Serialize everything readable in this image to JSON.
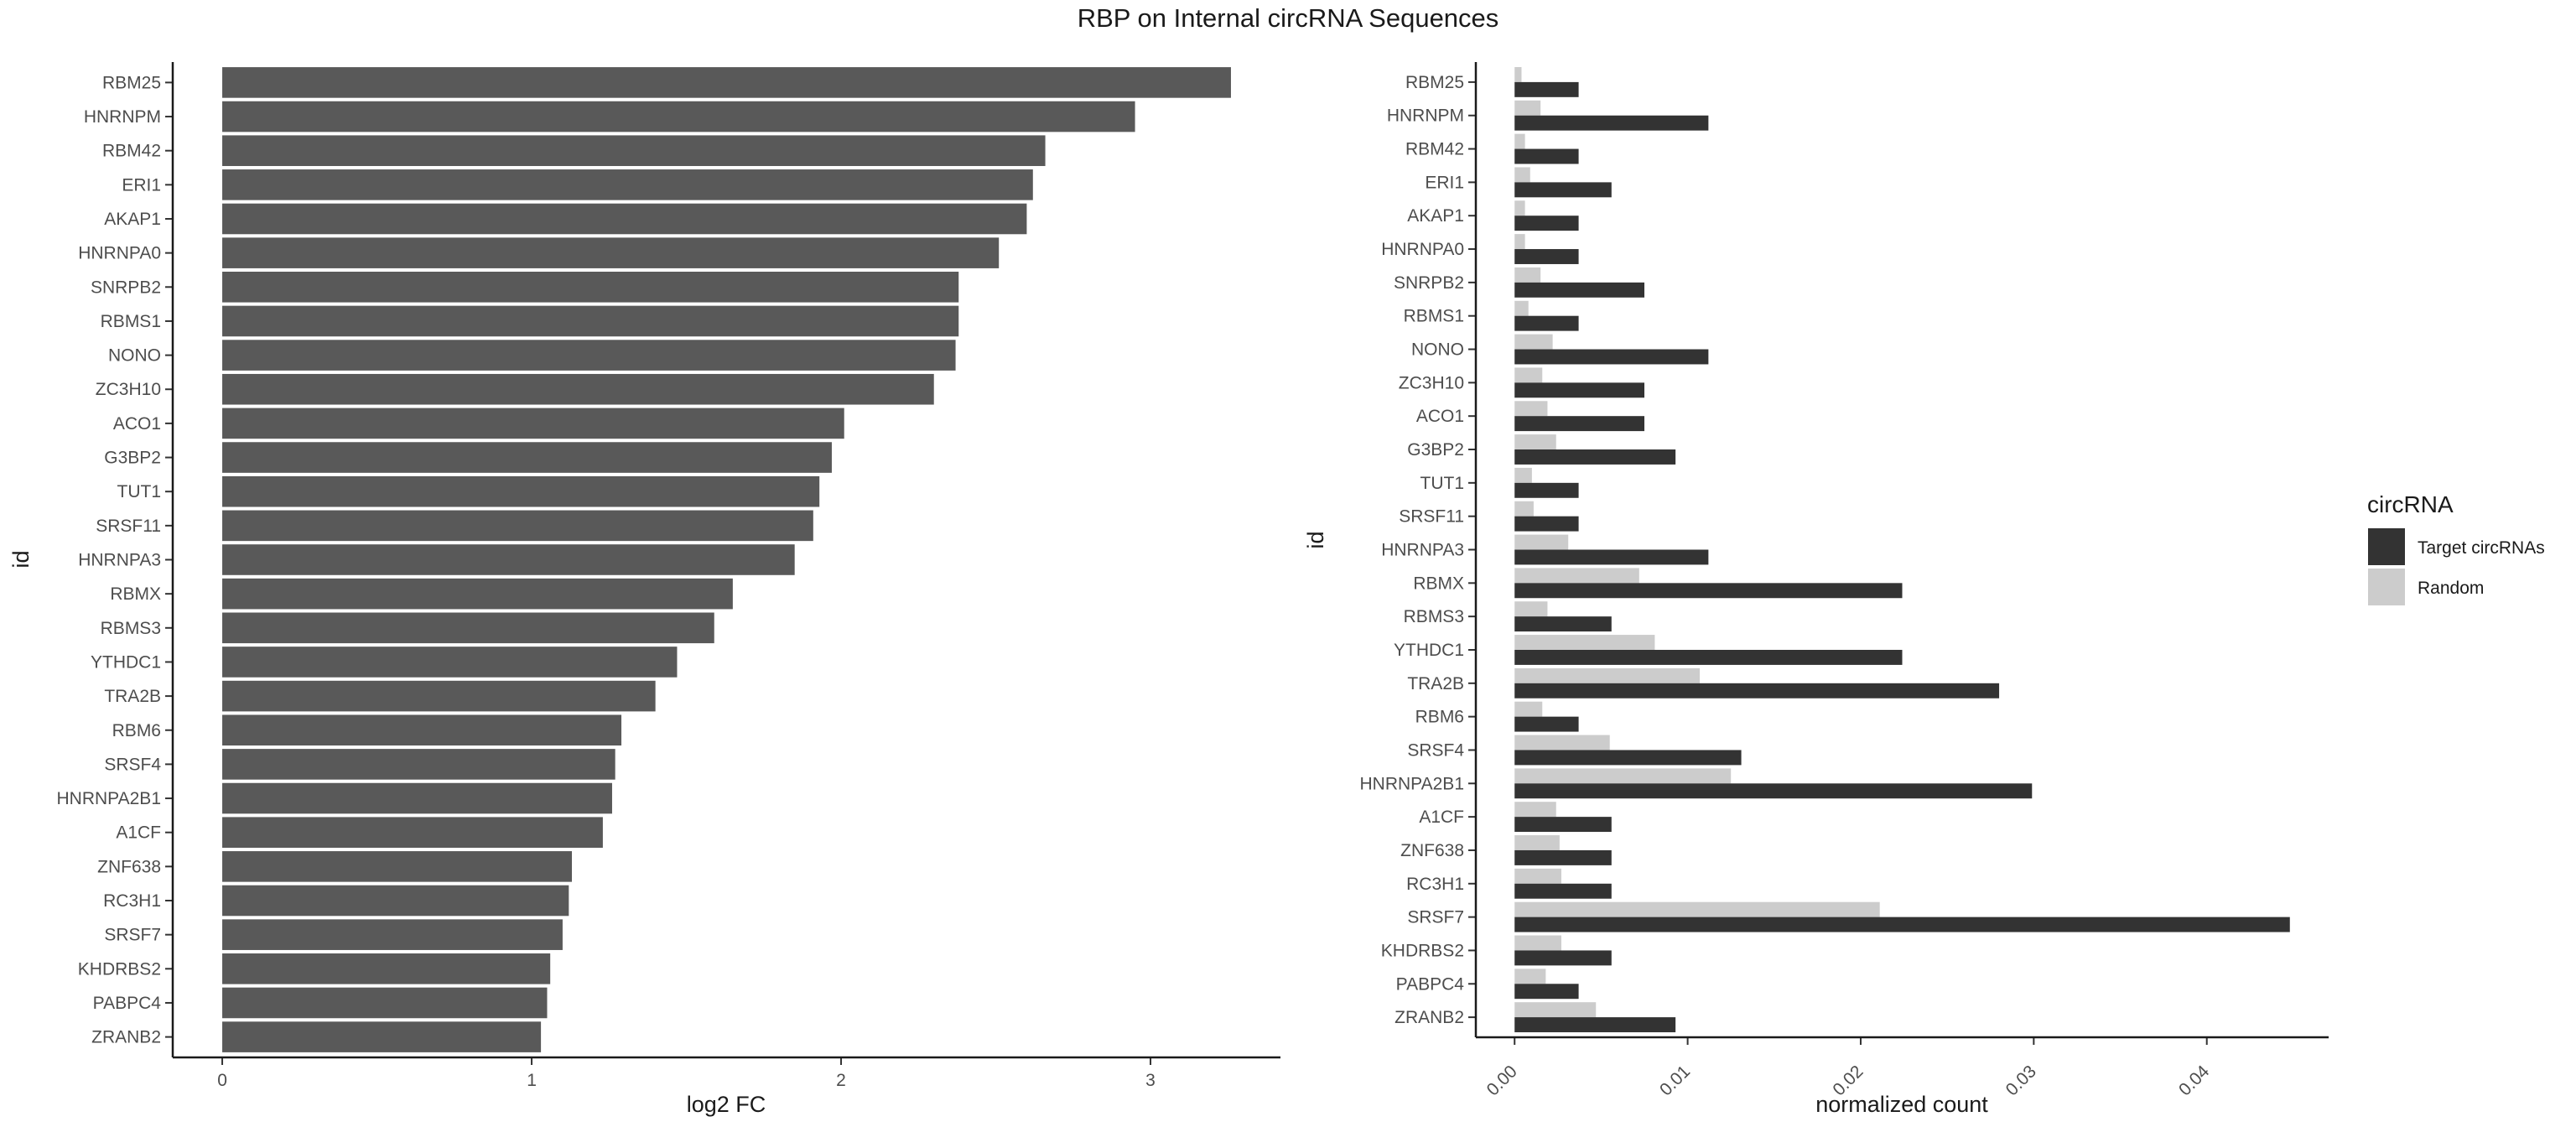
{
  "figure": {
    "title": "RBP on Internal circRNA Sequences"
  },
  "chart_data": [
    {
      "type": "bar",
      "orientation": "horizontal",
      "title": "",
      "xlabel": "log2 FC",
      "ylabel": "id",
      "categories": [
        "RBM25",
        "HNRNPM",
        "RBM42",
        "ERI1",
        "AKAP1",
        "HNRNPA0",
        "SNRPB2",
        "RBMS1",
        "NONO",
        "ZC3H10",
        "ACO1",
        "G3BP2",
        "TUT1",
        "SRSF11",
        "HNRNPA3",
        "RBMX",
        "RBMS3",
        "YTHDC1",
        "TRA2B",
        "RBM6",
        "SRSF4",
        "HNRNPA2B1",
        "A1CF",
        "ZNF638",
        "RC3H1",
        "SRSF7",
        "KHDRBS2",
        "PABPC4",
        "ZRANB2"
      ],
      "values": [
        3.26,
        2.95,
        2.66,
        2.62,
        2.6,
        2.51,
        2.38,
        2.38,
        2.37,
        2.3,
        2.01,
        1.97,
        1.93,
        1.91,
        1.85,
        1.65,
        1.59,
        1.47,
        1.4,
        1.29,
        1.27,
        1.26,
        1.23,
        1.13,
        1.12,
        1.1,
        1.06,
        1.05,
        1.03
      ],
      "xlim": [
        -0.16,
        3.42
      ],
      "xticks": [
        "0",
        "1",
        "2",
        "3"
      ],
      "xtick_values": [
        0,
        1,
        2,
        3
      ],
      "color": "#595959",
      "grid": false
    },
    {
      "type": "bar",
      "orientation": "horizontal",
      "grouped": true,
      "title": "",
      "xlabel": "normalized count",
      "ylabel": "id",
      "categories": [
        "RBM25",
        "HNRNPM",
        "RBM42",
        "ERI1",
        "AKAP1",
        "HNRNPA0",
        "SNRPB2",
        "RBMS1",
        "NONO",
        "ZC3H10",
        "ACO1",
        "G3BP2",
        "TUT1",
        "SRSF11",
        "HNRNPA3",
        "RBMX",
        "RBMS3",
        "YTHDC1",
        "TRA2B",
        "RBM6",
        "SRSF4",
        "HNRNPA2B1",
        "A1CF",
        "ZNF638",
        "RC3H1",
        "SRSF7",
        "KHDRBS2",
        "PABPC4",
        "ZRANB2"
      ],
      "series": [
        {
          "name": "Target circRNAs",
          "color": "#333333",
          "values": [
            0.0037,
            0.0112,
            0.0037,
            0.0056,
            0.0037,
            0.0037,
            0.0075,
            0.0037,
            0.0112,
            0.0075,
            0.0075,
            0.0093,
            0.0037,
            0.0037,
            0.0112,
            0.0224,
            0.0056,
            0.0224,
            0.028,
            0.0037,
            0.0131,
            0.0299,
            0.0056,
            0.0056,
            0.0056,
            0.0448,
            0.0056,
            0.0037,
            0.0093
          ]
        },
        {
          "name": "Random",
          "color": "#cccccc",
          "values": [
            0.0004,
            0.0015,
            0.0006,
            0.0009,
            0.0006,
            0.0006,
            0.0015,
            0.0008,
            0.0022,
            0.0016,
            0.0019,
            0.0024,
            0.001,
            0.0011,
            0.0031,
            0.0072,
            0.0019,
            0.0081,
            0.0107,
            0.0016,
            0.0055,
            0.0125,
            0.0024,
            0.0026,
            0.0027,
            0.0211,
            0.0027,
            0.0018,
            0.0047
          ]
        }
      ],
      "xlim": [
        -0.00224,
        0.04704
      ],
      "xticks": [
        "0.00",
        "0.01",
        "0.02",
        "0.03",
        "0.04"
      ],
      "xtick_values": [
        0,
        0.01,
        0.02,
        0.03,
        0.04
      ],
      "legend_title": "circRNA",
      "legend_position": "right",
      "grid": false
    }
  ]
}
